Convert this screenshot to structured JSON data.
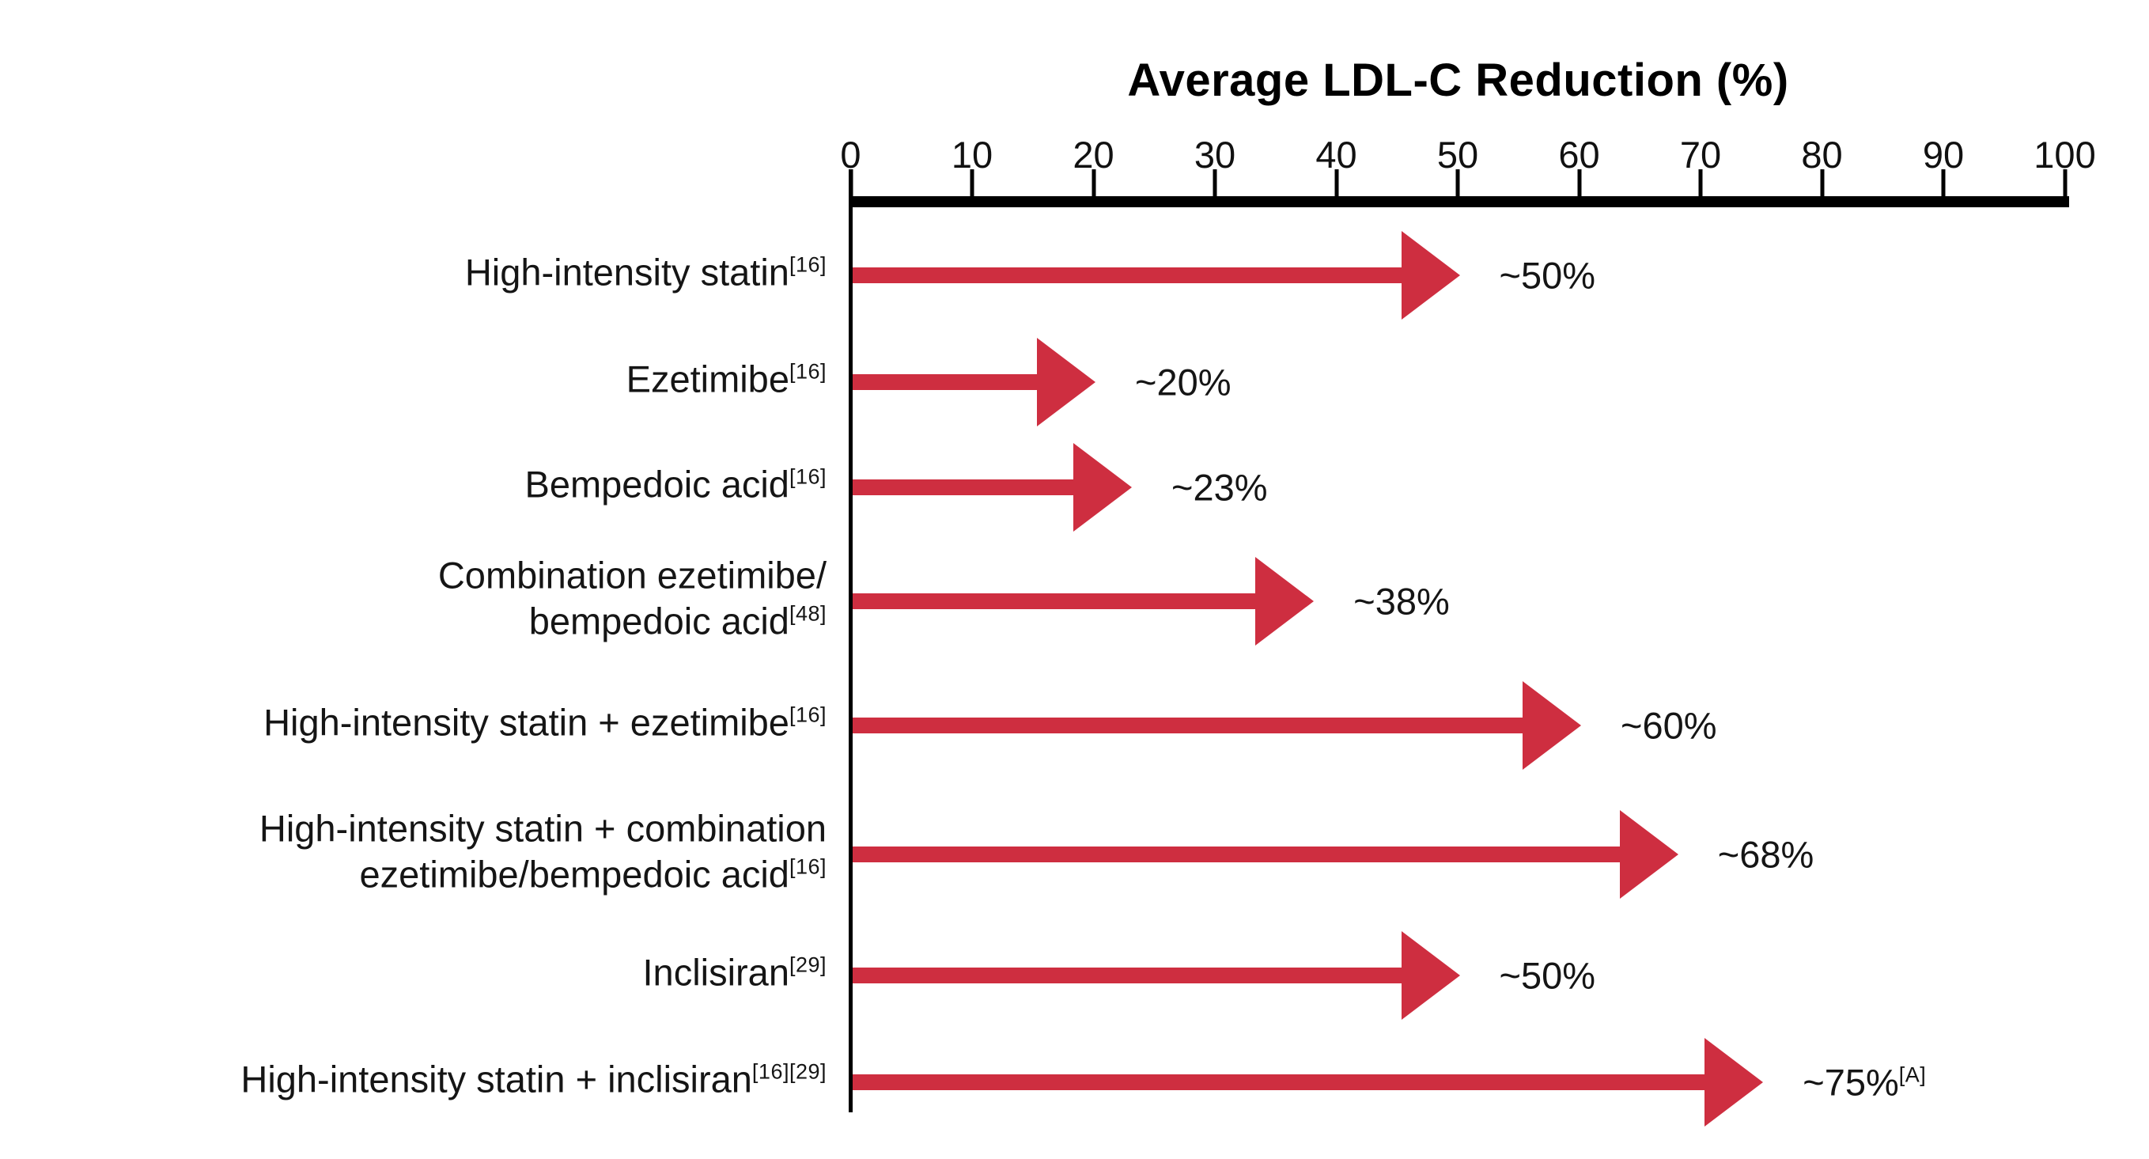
{
  "chart_data": {
    "type": "bar",
    "orientation": "horizontal",
    "bar_style": "arrow",
    "title": "Average LDL-C Reduction (%)",
    "xlabel": "Average LDL-C Reduction (%)",
    "ylabel": "",
    "xlim": [
      0,
      100
    ],
    "x_ticks": [
      0,
      10,
      20,
      30,
      40,
      50,
      60,
      70,
      80,
      90,
      100
    ],
    "grid": false,
    "legend": false,
    "arrow_color": "#ce2e40",
    "axis_color": "#000000",
    "categories": [
      "High-intensity statin[16]",
      "Ezetimibe[16]",
      "Bempedoic acid[16]",
      "Combination ezetimibe/bempedoic acid[48]",
      "High-intensity statin + ezetimibe[16]",
      "High-intensity statin + combination ezetimibe/bempedoic acid[16]",
      "Inclisiran[29]",
      "High-intensity statin + inclisiran[16][29]"
    ],
    "values": [
      50,
      20,
      23,
      38,
      60,
      68,
      50,
      75
    ],
    "rows": [
      {
        "label_lines": [
          {
            "text": "High-intensity statin",
            "sup": "[16]"
          }
        ],
        "value": 50,
        "value_label": "~50%",
        "value_sup": ""
      },
      {
        "label_lines": [
          {
            "text": "Ezetimibe",
            "sup": "[16]"
          }
        ],
        "value": 20,
        "value_label": "~20%",
        "value_sup": ""
      },
      {
        "label_lines": [
          {
            "text": "Bempedoic acid",
            "sup": "[16]"
          }
        ],
        "value": 23,
        "value_label": "~23%",
        "value_sup": ""
      },
      {
        "label_lines": [
          {
            "text": "Combination ezetimibe/",
            "sup": ""
          },
          {
            "text": "bempedoic acid",
            "sup": "[48]"
          }
        ],
        "value": 38,
        "value_label": "~38%",
        "value_sup": ""
      },
      {
        "label_lines": [
          {
            "text": "High-intensity statin + ezetimibe",
            "sup": "[16]"
          }
        ],
        "value": 60,
        "value_label": "~60%",
        "value_sup": ""
      },
      {
        "label_lines": [
          {
            "text": "High-intensity statin + combination",
            "sup": ""
          },
          {
            "text": "ezetimibe/bempedoic acid",
            "sup": "[16]"
          }
        ],
        "value": 68,
        "value_label": "~68%",
        "value_sup": ""
      },
      {
        "label_lines": [
          {
            "text": "Inclisiran",
            "sup": "[29]"
          }
        ],
        "value": 50,
        "value_label": "~50%",
        "value_sup": ""
      },
      {
        "label_lines": [
          {
            "text": "High-intensity statin + inclisiran",
            "sup": "[16][29]"
          }
        ],
        "value": 75,
        "value_label": "~75%",
        "value_sup": "[A]"
      }
    ]
  }
}
